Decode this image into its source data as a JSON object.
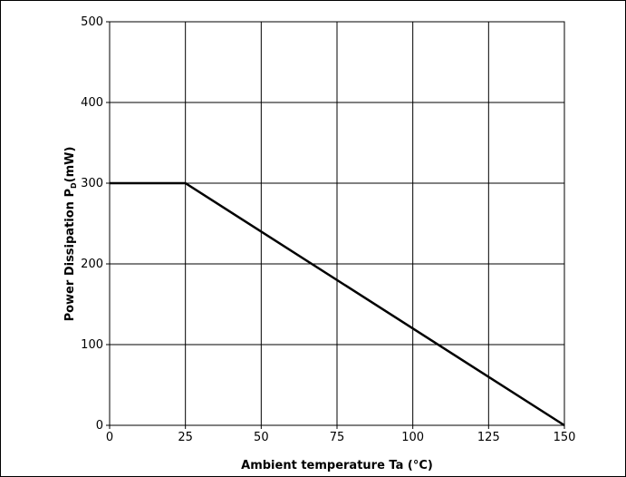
{
  "chart_data": {
    "type": "line",
    "title": "",
    "xlabel": "Ambient temperature  Ta (°C)",
    "ylabel": {
      "prefix": "Power Dissipation  P",
      "subscript": "D",
      "suffix": "(mW)"
    },
    "xlim": [
      0,
      150
    ],
    "ylim": [
      0,
      500
    ],
    "x_ticks": [
      0,
      25,
      50,
      75,
      100,
      125,
      150
    ],
    "y_ticks": [
      0,
      100,
      200,
      300,
      400,
      500
    ],
    "grid": true,
    "series": [
      {
        "x": [
          0,
          25,
          150
        ],
        "y": [
          300,
          300,
          0
        ],
        "color": "#000000"
      }
    ]
  }
}
